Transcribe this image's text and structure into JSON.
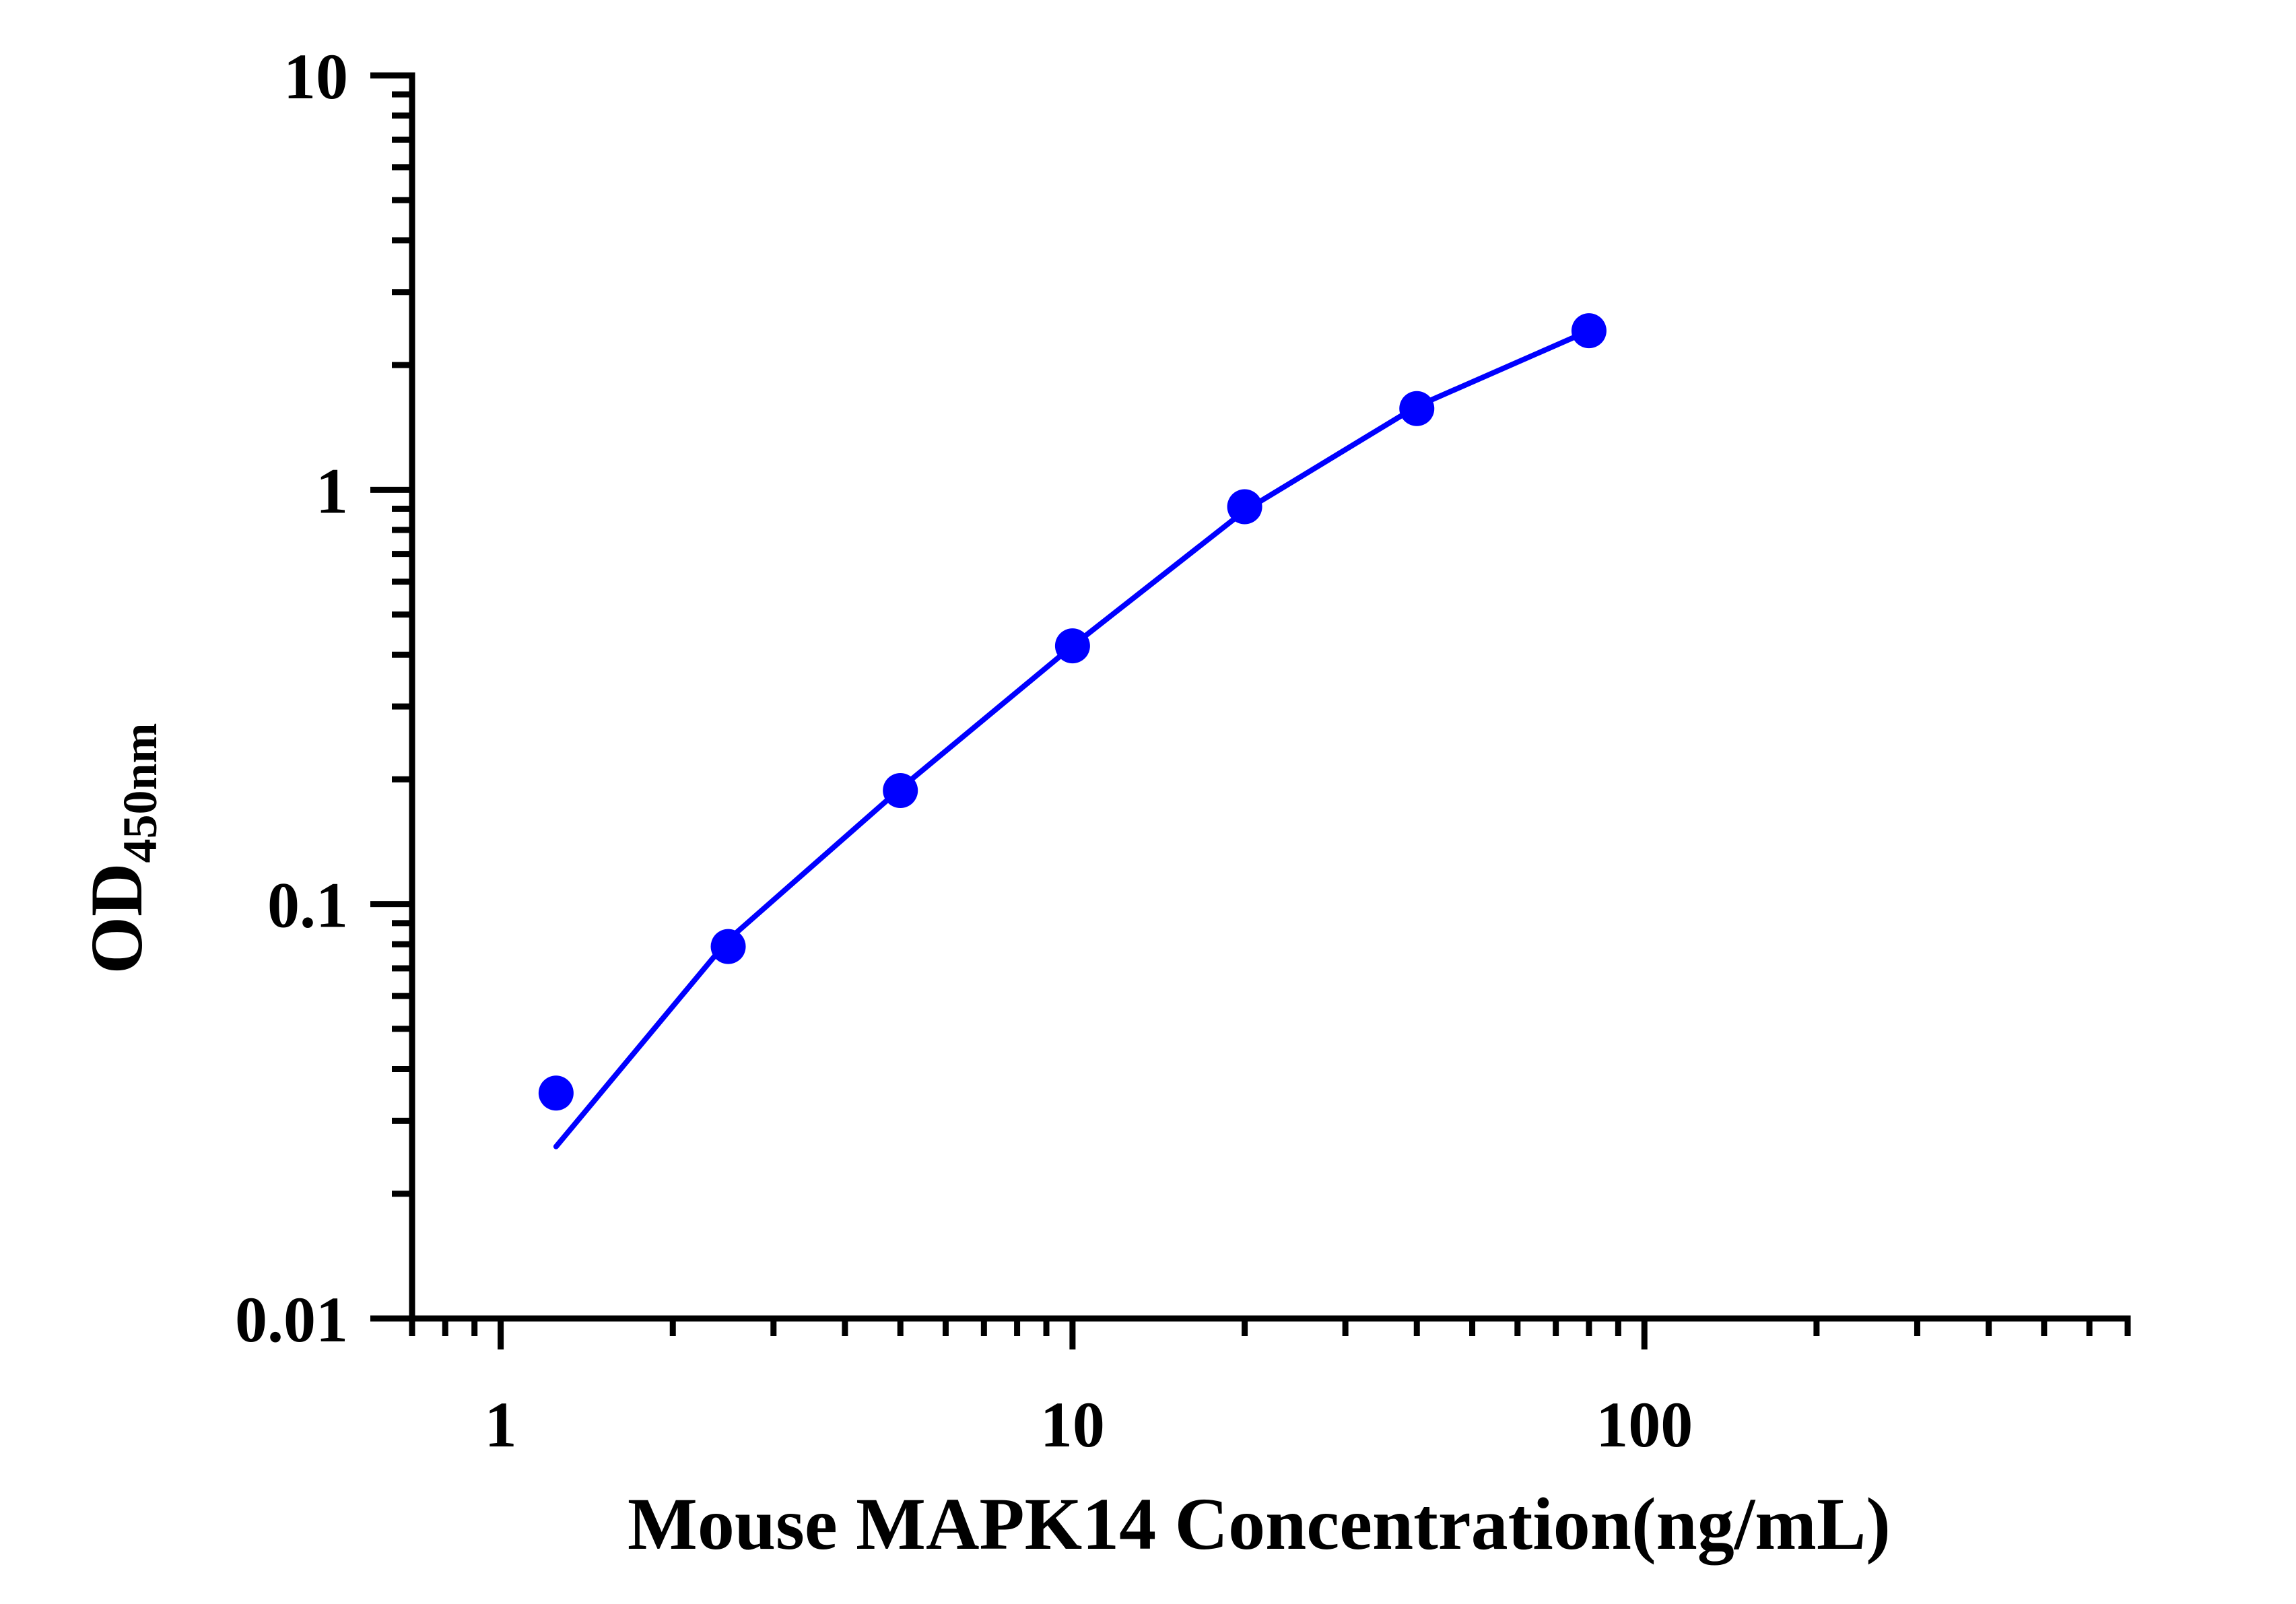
{
  "chart_data": {
    "type": "scatter",
    "title": "",
    "xlabel": "Mouse MAPK14 Concentration(ng/mL)",
    "ylabel": "OD",
    "ylabel_subscript": "450nm",
    "x_scale": "log",
    "y_scale": "log",
    "xlim": [
      0.7,
      700
    ],
    "ylim": [
      0.01,
      10
    ],
    "x_tick_labels": [
      "1",
      "10",
      "100"
    ],
    "y_tick_labels": [
      "0.01",
      "0.1",
      "1",
      "10"
    ],
    "grid": false,
    "legend": "none",
    "colors": {
      "series": "#0000ff",
      "axes": "#000000"
    },
    "series": [
      {
        "kind": "points",
        "x": [
          1.25,
          2.5,
          5,
          10,
          20,
          40,
          80
        ],
        "y": [
          0.035,
          0.079,
          0.188,
          0.42,
          0.91,
          1.57,
          2.42
        ]
      },
      {
        "kind": "fit-curve",
        "x": [
          1.25,
          2.5,
          5,
          10,
          20,
          40,
          80
        ],
        "y": [
          0.026,
          0.082,
          0.19,
          0.42,
          0.89,
          1.59,
          2.42
        ]
      }
    ]
  }
}
